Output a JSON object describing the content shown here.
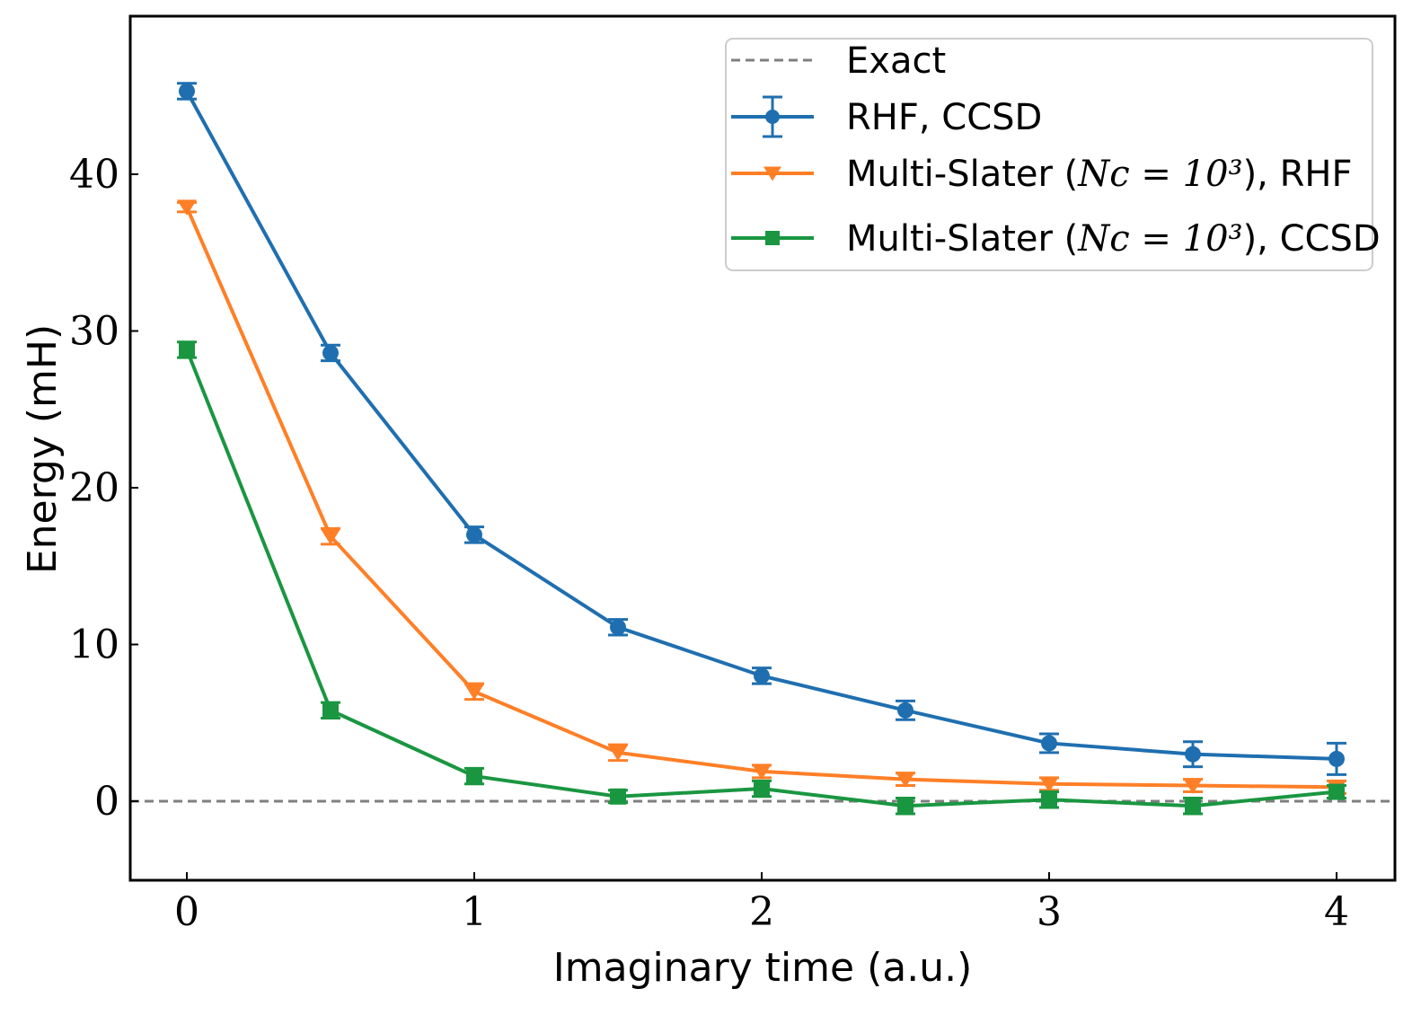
{
  "chart_data": {
    "type": "line",
    "title": "",
    "xlabel": "Imaginary time (a.u.)",
    "ylabel": "Energy (mH)",
    "xlim": [
      -0.2,
      4.2
    ],
    "ylim": [
      -5,
      50
    ],
    "xticks": [
      0,
      1,
      2,
      3,
      4
    ],
    "yticks": [
      0,
      10,
      20,
      30,
      40
    ],
    "grid": false,
    "legend_position": "top-right",
    "reference_line": {
      "name": "Exact",
      "y": 0,
      "color": "#7f7f7f",
      "style": "dashed"
    },
    "series": [
      {
        "name": "RHF, CCSD",
        "color": "#1f6fb0",
        "marker": "circle",
        "x": [
          0,
          0.5,
          1,
          1.5,
          2,
          2.5,
          3,
          3.5,
          4
        ],
        "y": [
          45.3,
          28.6,
          17.0,
          11.1,
          8.0,
          5.8,
          3.7,
          3.0,
          2.7
        ],
        "err": [
          0.5,
          0.5,
          0.5,
          0.5,
          0.5,
          0.6,
          0.6,
          0.8,
          1.0
        ]
      },
      {
        "name": "Multi-Slater (Nc = 10^3), RHF",
        "color": "#ff7f27",
        "marker": "triangle-down",
        "x": [
          0,
          0.5,
          1,
          1.5,
          2,
          2.5,
          3,
          3.5,
          4
        ],
        "y": [
          37.9,
          16.9,
          7.0,
          3.1,
          1.9,
          1.4,
          1.1,
          1.0,
          0.9
        ],
        "err": [
          0.3,
          0.5,
          0.5,
          0.5,
          0.4,
          0.4,
          0.4,
          0.4,
          0.4
        ]
      },
      {
        "name": "Multi-Slater (Nc = 10^3), CCSD",
        "color": "#1a9641",
        "marker": "square",
        "x": [
          0,
          0.5,
          1,
          1.5,
          2,
          2.5,
          3,
          3.5,
          4
        ],
        "y": [
          28.8,
          5.8,
          1.6,
          0.3,
          0.8,
          -0.3,
          0.1,
          -0.3,
          0.6
        ],
        "err": [
          0.5,
          0.5,
          0.5,
          0.4,
          0.5,
          0.5,
          0.5,
          0.5,
          0.4
        ]
      }
    ],
    "legend": {
      "entries": [
        {
          "pre": "Exact",
          "math": "",
          "post": ""
        },
        {
          "pre": "RHF, CCSD",
          "math": "",
          "post": ""
        },
        {
          "pre": "Multi-Slater (",
          "math": "Nc = 10³",
          "post": "), RHF"
        },
        {
          "pre": "Multi-Slater (",
          "math": "Nc = 10³",
          "post": "), CCSD"
        }
      ]
    }
  }
}
